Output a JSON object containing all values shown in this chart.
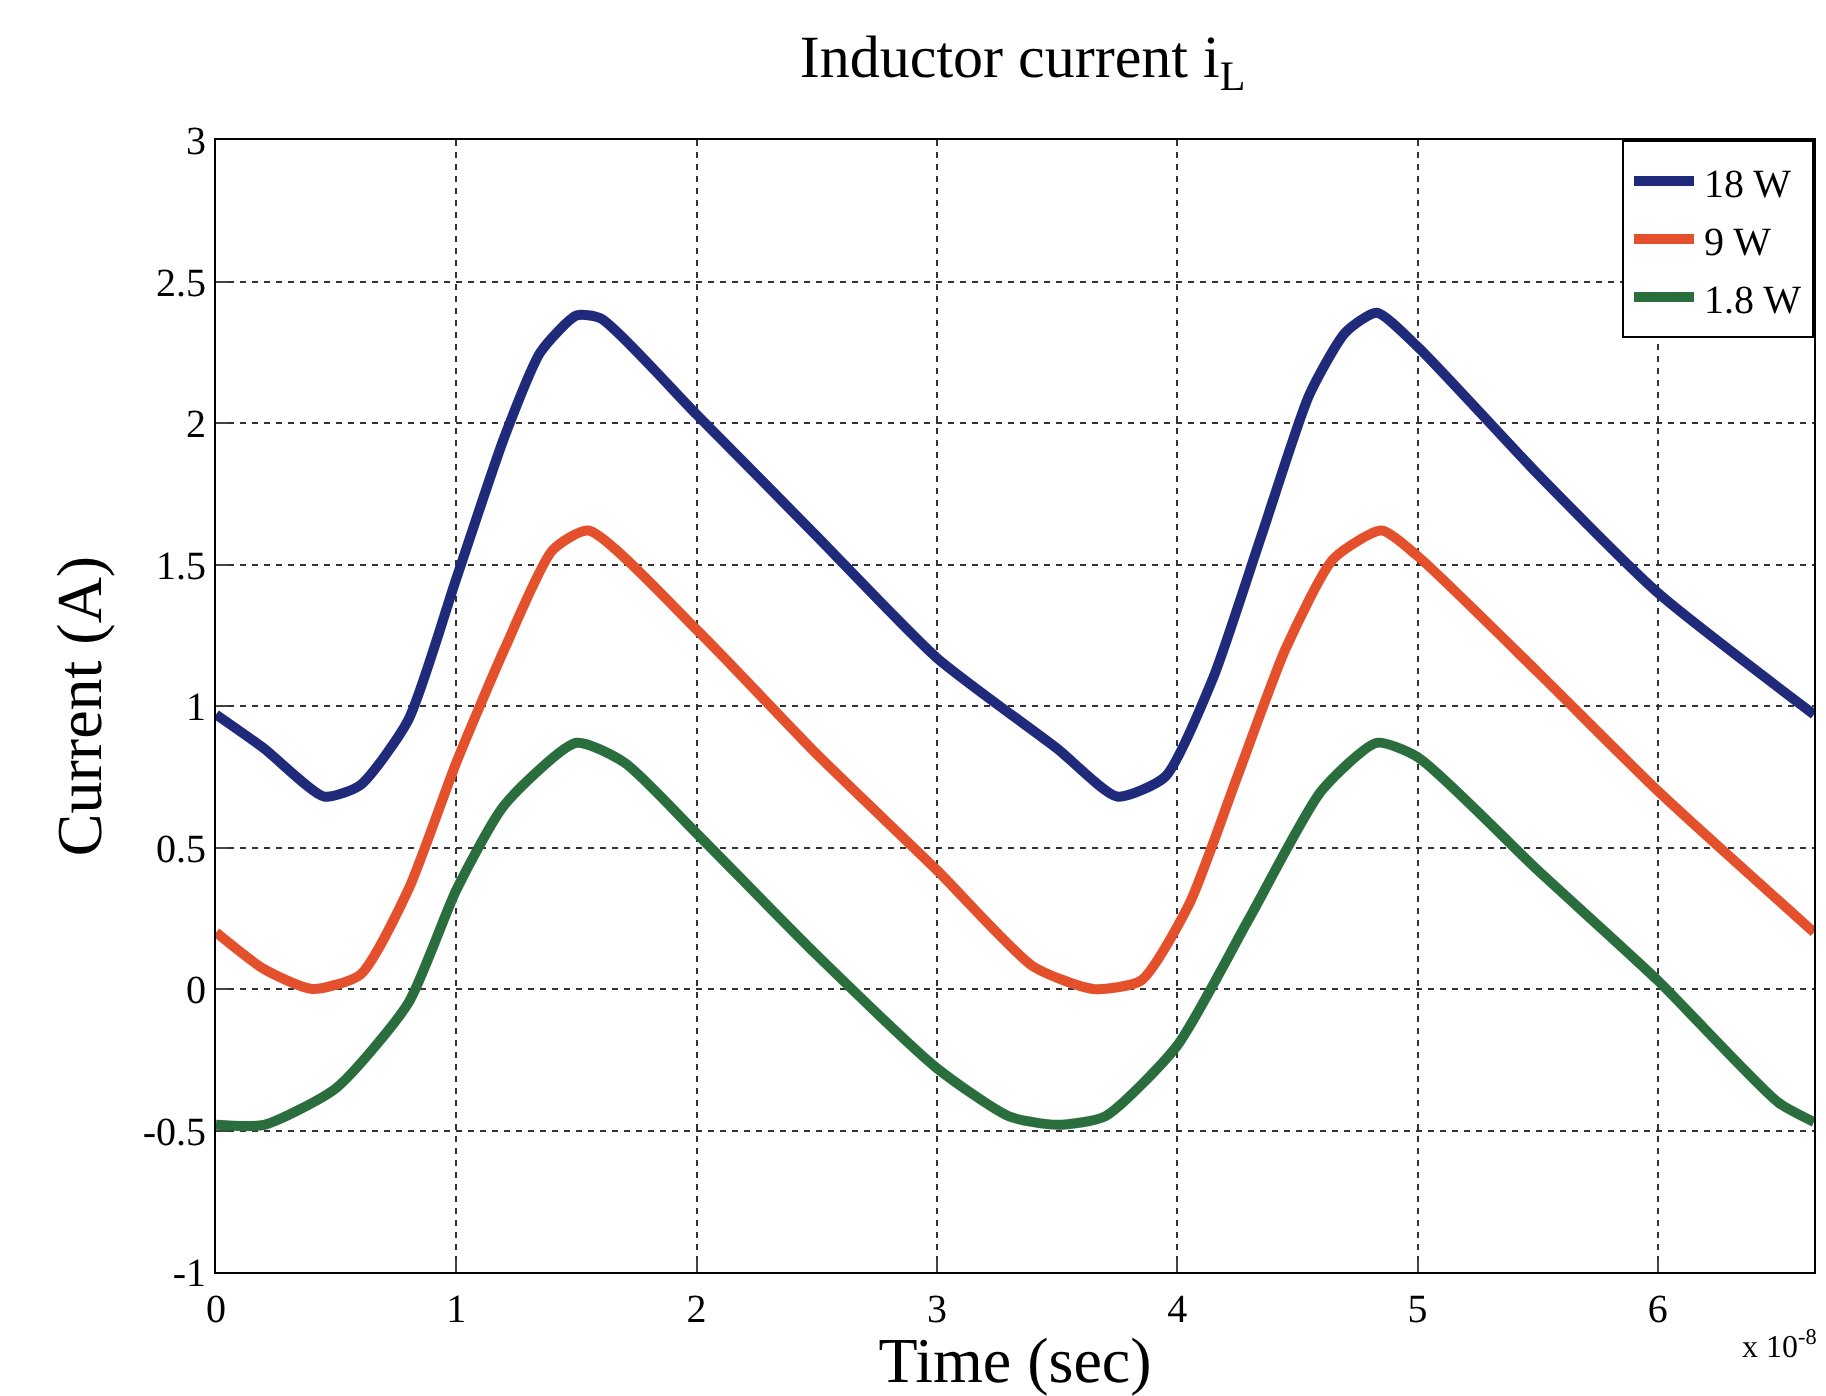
{
  "chart_data": {
    "type": "line",
    "title": "Inductor current i$_{L}$",
    "xlabel": "Time (sec)",
    "ylabel": "Current (A)",
    "annotations": [
      "x 10$^{-8}$"
    ],
    "xlim": [
      0,
      6.65
    ],
    "xticks": [
      0,
      1,
      2,
      3,
      4,
      5,
      6
    ],
    "ylim": [
      -1,
      3
    ],
    "yticks": [
      -1,
      -0.5,
      0,
      0.5,
      1,
      1.5,
      2,
      2.5,
      3
    ],
    "grid": true,
    "legend": "top right",
    "marker": "none",
    "line_style": "solid",
    "series": [
      {
        "name": "18 W",
        "color": "#1f2a7a",
        "x": [
          0,
          0.2,
          0.45,
          0.6,
          0.8,
          1.0,
          1.2,
          1.35,
          1.5,
          1.6,
          2.0,
          2.5,
          3.0,
          3.5,
          3.75,
          3.95,
          4.15,
          4.35,
          4.55,
          4.7,
          4.83,
          5.0,
          5.5,
          6.0,
          6.65
        ],
        "values": [
          0.97,
          0.85,
          0.68,
          0.72,
          0.95,
          1.45,
          1.95,
          2.25,
          2.38,
          2.37,
          2.03,
          1.6,
          1.17,
          0.85,
          0.68,
          0.75,
          1.1,
          1.6,
          2.1,
          2.32,
          2.39,
          2.27,
          1.82,
          1.4,
          0.97
        ]
      },
      {
        "name": "9 W",
        "color": "#e4502c",
        "x": [
          0,
          0.2,
          0.4,
          0.6,
          0.8,
          1.0,
          1.2,
          1.4,
          1.55,
          2.0,
          2.5,
          3.0,
          3.4,
          3.65,
          3.85,
          4.05,
          4.25,
          4.45,
          4.65,
          4.85,
          5.0,
          5.5,
          6.0,
          6.65
        ],
        "values": [
          0.2,
          0.07,
          0.0,
          0.05,
          0.35,
          0.8,
          1.2,
          1.55,
          1.62,
          1.27,
          0.83,
          0.42,
          0.08,
          0.0,
          0.03,
          0.3,
          0.75,
          1.2,
          1.52,
          1.62,
          1.53,
          1.12,
          0.7,
          0.2
        ]
      },
      {
        "name": "1.8 W",
        "color": "#2a6e3e",
        "x": [
          0,
          0.2,
          0.5,
          0.8,
          1.0,
          1.2,
          1.5,
          1.7,
          2.0,
          2.5,
          3.0,
          3.3,
          3.5,
          3.7,
          4.0,
          4.3,
          4.6,
          4.83,
          5.0,
          5.5,
          6.0,
          6.5,
          6.65
        ],
        "values": [
          -0.48,
          -0.48,
          -0.35,
          -0.05,
          0.35,
          0.65,
          0.87,
          0.8,
          0.55,
          0.12,
          -0.28,
          -0.45,
          -0.48,
          -0.45,
          -0.2,
          0.25,
          0.7,
          0.87,
          0.82,
          0.42,
          0.03,
          -0.4,
          -0.47
        ]
      }
    ]
  }
}
